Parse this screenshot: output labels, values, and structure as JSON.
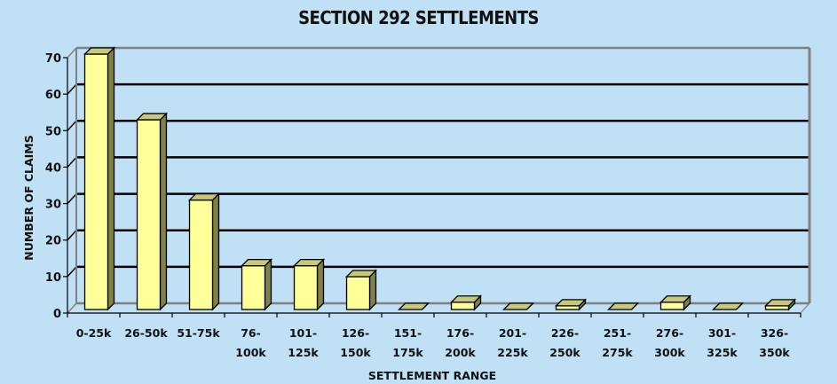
{
  "chart_data": {
    "type": "bar",
    "title": "SECTION 292 SETTLEMENTS",
    "xlabel": "SETTLEMENT RANGE",
    "ylabel": "NUMBER OF CLAIMS",
    "categories": [
      "0-25k",
      "26-50k",
      "51-75k",
      "76-100k",
      "101-125k",
      "126-150k",
      "151-175k",
      "176-200k",
      "201-225k",
      "226-250k",
      "251-275k",
      "276-300k",
      "301-325k",
      "326-350k"
    ],
    "category_lines": [
      [
        "0-25k"
      ],
      [
        "26-50k"
      ],
      [
        "51-75k"
      ],
      [
        "76-",
        "100k"
      ],
      [
        "101-",
        "125k"
      ],
      [
        "126-",
        "150k"
      ],
      [
        "151-",
        "175k"
      ],
      [
        "176-",
        "200k"
      ],
      [
        "201-",
        "225k"
      ],
      [
        "226-",
        "250k"
      ],
      [
        "251-",
        "275k"
      ],
      [
        "276-",
        "300k"
      ],
      [
        "301-",
        "325k"
      ],
      [
        "326-",
        "350k"
      ]
    ],
    "values": [
      70,
      52,
      30,
      12,
      12,
      9,
      0,
      2,
      0,
      1,
      0,
      2,
      0,
      1
    ],
    "ylim": [
      0,
      70
    ],
    "yticks": [
      0,
      10,
      20,
      30,
      40,
      50,
      60,
      70
    ],
    "grid": true,
    "legend": null,
    "style": "3d-column",
    "colors": {
      "background": "#bfe0f5",
      "bar_front": "#ffff99",
      "bar_side": "#808048",
      "bar_top": "#c8c878",
      "gridline": "#000000",
      "wall_border": "#808080"
    }
  }
}
